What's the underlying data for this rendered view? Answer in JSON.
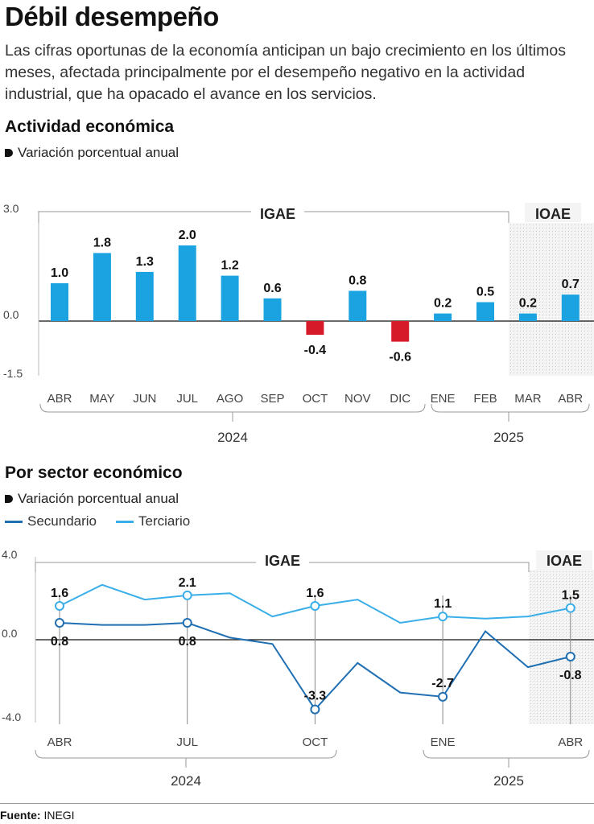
{
  "header": {
    "title": "Débil desempeño",
    "subtitle": "Las cifras oportunas de la economía anticipan un bajo crecimiento en los últimos meses, afectada principalmente por el desempeño negativo en la actividad industrial, que ha opacado el avance en los servicios."
  },
  "colors": {
    "positive_bar": "#1aa3e0",
    "negative_bar": "#d71a2a",
    "secundario": "#1f6fb2",
    "terciario": "#3aaee8",
    "estimate_shade": "#e9e9e9"
  },
  "chart_data": [
    {
      "type": "bar",
      "title": "Actividad económica",
      "ylabel": "Variación porcentual anual",
      "ylim": [
        -1.5,
        3.0
      ],
      "yticks": [
        "3.0",
        "0.0",
        "-1.5"
      ],
      "categories": [
        "ABR",
        "MAY",
        "JUN",
        "JUL",
        "AGO",
        "SEP",
        "OCT",
        "NOV",
        "DIC",
        "ENE",
        "FEB",
        "MAR",
        "ABR"
      ],
      "values": [
        1.0,
        1.8,
        1.3,
        2.0,
        1.2,
        0.6,
        -0.4,
        0.8,
        -0.6,
        0.2,
        0.5,
        0.2,
        0.7
      ],
      "value_labels": [
        "1.0",
        "1.8",
        "1.3",
        "2.0",
        "1.2",
        "0.6",
        "-0.4",
        "0.8",
        "-0.6",
        "0.2",
        "0.5",
        "0.2",
        "0.7"
      ],
      "groups": [
        "IGAE",
        "IOAE"
      ],
      "years": [
        "2024",
        "2025"
      ]
    },
    {
      "type": "line",
      "title": "Por sector económico",
      "ylabel": "Variación porcentual anual",
      "ylim": [
        -4.0,
        4.0
      ],
      "yticks": [
        "4.0",
        "0.0",
        "-4.0"
      ],
      "x": [
        "ABR",
        "MAY",
        "JUN",
        "JUL",
        "AGO",
        "SEP",
        "OCT",
        "NOV",
        "DIC",
        "ENE",
        "FEB",
        "MAR",
        "ABR"
      ],
      "xtick_labels": [
        "ABR",
        "JUL",
        "OCT",
        "ENE",
        "ABR"
      ],
      "series": [
        {
          "name": "Secundario",
          "values": [
            0.8,
            0.7,
            0.7,
            0.8,
            0.1,
            -0.2,
            -3.3,
            -1.1,
            -2.5,
            -2.7,
            0.4,
            -1.3,
            -0.8
          ],
          "labels": [
            "0.8",
            null,
            null,
            "0.8",
            null,
            null,
            "-3.3",
            null,
            null,
            "-2.7",
            null,
            null,
            "-0.8"
          ]
        },
        {
          "name": "Terciario",
          "values": [
            1.6,
            2.6,
            1.9,
            2.1,
            2.2,
            1.1,
            1.6,
            1.9,
            0.8,
            1.1,
            1.0,
            1.1,
            1.5
          ],
          "labels": [
            "1.6",
            null,
            null,
            "2.1",
            null,
            null,
            "1.6",
            null,
            null,
            "1.1",
            null,
            null,
            "1.5"
          ]
        }
      ],
      "groups": [
        "IGAE",
        "IOAE"
      ],
      "years": [
        "2024",
        "2025"
      ]
    }
  ],
  "footer": {
    "source_label": "Fuente:",
    "source_value": "INEGI"
  }
}
